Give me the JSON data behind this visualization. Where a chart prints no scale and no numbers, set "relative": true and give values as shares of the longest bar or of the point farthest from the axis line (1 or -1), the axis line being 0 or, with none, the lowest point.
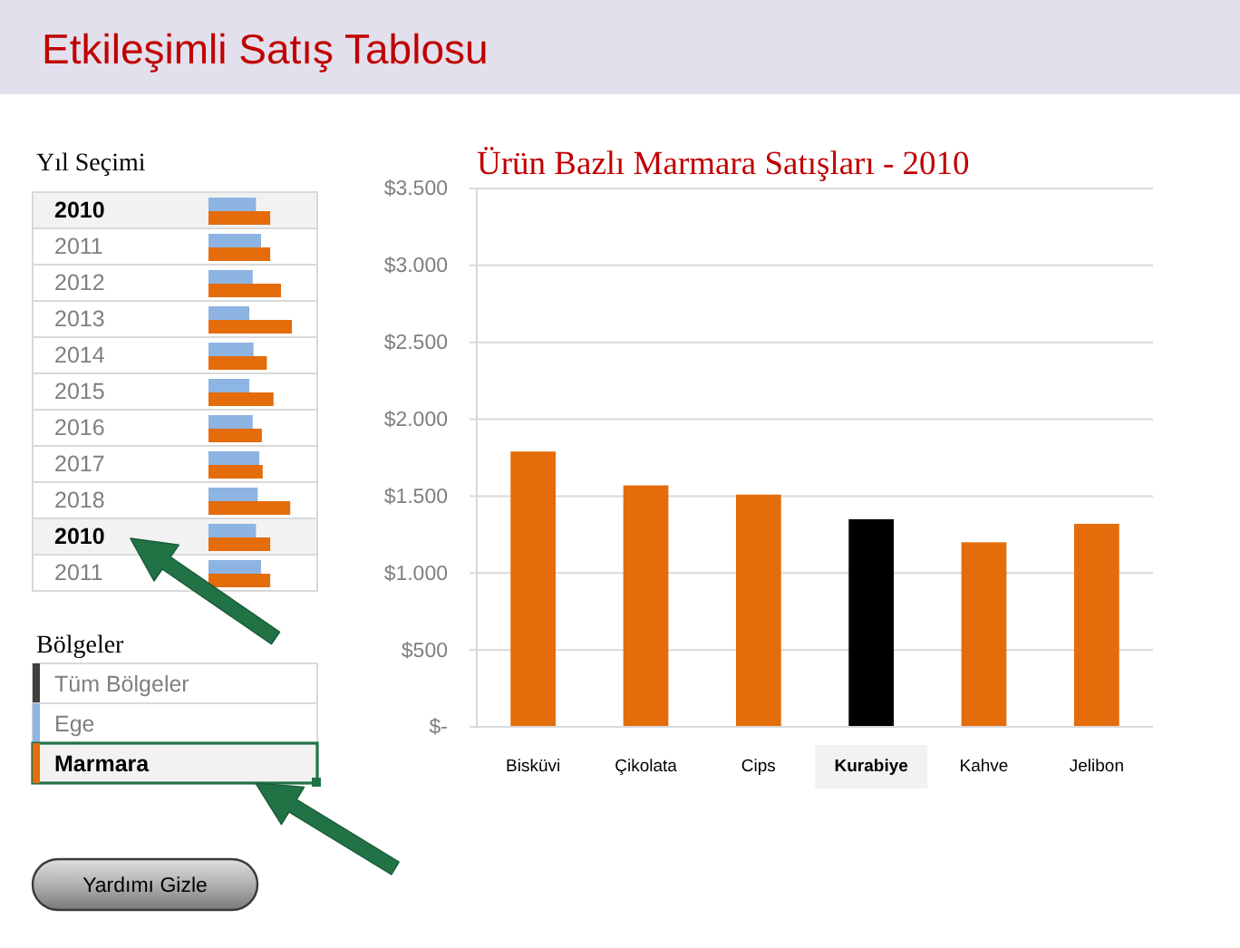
{
  "chart_data": [
    {
      "type": "other",
      "title": "Etkileşimli Satış Tablosu"
    },
    {
      "type": "bar",
      "orientation": "horizontal",
      "relative": true,
      "title": "Yıl Seçimi",
      "categories": [
        "2010",
        "2011",
        "2012",
        "2013",
        "2014",
        "2015",
        "2016",
        "2017",
        "2018",
        "2010",
        "2011"
      ],
      "series": [
        {
          "color": "#8db4e2",
          "values": [
            0.57,
            0.63,
            0.53,
            0.49,
            0.54,
            0.49,
            0.53,
            0.61,
            0.59,
            0.57,
            0.63
          ]
        },
        {
          "color": "#e46c0a",
          "values": [
            0.74,
            0.74,
            0.87,
            1,
            0.7,
            0.78,
            0.64,
            0.65,
            0.98,
            0.74,
            0.74
          ]
        }
      ]
    },
    {
      "type": "bar",
      "title": "Ürün Bazlı Marmara Satışları - 2010",
      "categories": [
        "Bisküvi",
        "Çikolata",
        "Cips",
        "Kurabiye",
        "Kahve",
        "Jelibon"
      ],
      "values": [
        1790,
        1570,
        1510,
        1350,
        1200,
        1320
      ],
      "colors": [
        "#e46c0a",
        "#e46c0a",
        "#e46c0a",
        "#000000",
        "#e46c0a",
        "#e46c0a"
      ],
      "ylim": [
        0,
        3500
      ],
      "yticks": [
        {
          "value": 0,
          "label": "$-"
        },
        {
          "value": 500,
          "label": "$500"
        },
        {
          "value": 1000,
          "label": "$1.000"
        },
        {
          "value": 1500,
          "label": "$1.500"
        },
        {
          "value": 2000,
          "label": "$2.000"
        },
        {
          "value": 2500,
          "label": "$2.500"
        },
        {
          "value": 3000,
          "label": "$3.000"
        },
        {
          "value": 3500,
          "label": "$3.500"
        }
      ],
      "grid": "y"
    },
    {
      "type": "other",
      "title": "Bölgeler",
      "categories": [
        "Tüm Bölgeler",
        "Ege",
        "Marmara"
      ],
      "colors": [
        "#404040",
        "#8db4e2",
        "#e46c0a"
      ],
      "annotations": [
        "Yardımı Gizle"
      ]
    }
  ]
}
